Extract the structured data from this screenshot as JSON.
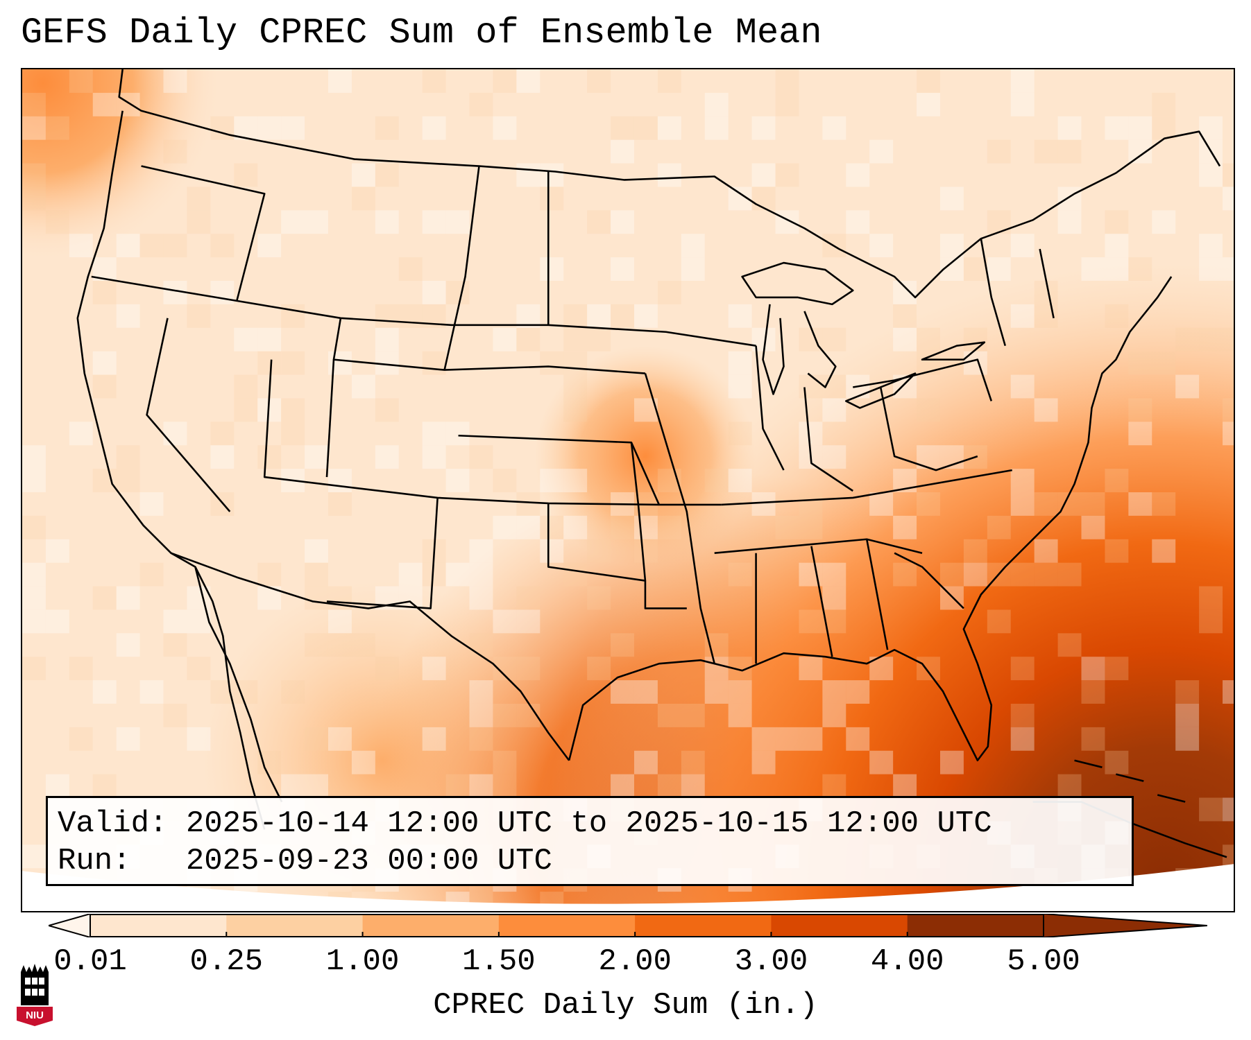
{
  "title": "GEFS Daily CPREC Sum of Ensemble Mean",
  "info": {
    "valid_label": "Valid:",
    "valid_value": "2025-10-14 12:00 UTC to 2025-10-15 12:00 UTC",
    "run_label": "Run:",
    "run_value": "2025-09-23 00:00 UTC"
  },
  "colorbar": {
    "label": "CPREC Daily Sum (in.)",
    "ticks": [
      "0.01",
      "0.25",
      "1.00",
      "1.50",
      "2.00",
      "3.00",
      "4.00",
      "5.00"
    ],
    "colors": [
      "#fff5eb",
      "#fee6ce",
      "#fdd0a2",
      "#fdae6b",
      "#fd8d3c",
      "#f16913",
      "#d94801",
      "#8c2d04"
    ]
  },
  "logo": {
    "text": "NIU"
  }
}
